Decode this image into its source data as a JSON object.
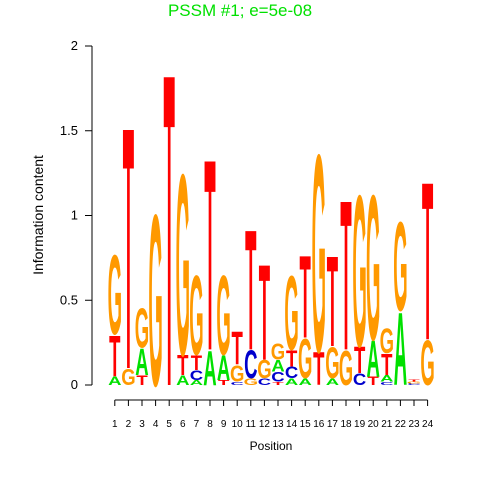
{
  "chart_data": {
    "type": "sequence-logo",
    "title": "PSSM #1; e=5e-08",
    "title_color": "#00e000",
    "xlabel": "Position",
    "ylabel": "Information content",
    "ylim": [
      0,
      2
    ],
    "y_ticks": [
      "0",
      "0.5",
      "1",
      "1.5",
      "2"
    ],
    "y_tick_values": [
      0,
      0.5,
      1,
      1.5,
      2
    ],
    "grid": false,
    "letter_colors": {
      "A": "#00e000",
      "C": "#0000cc",
      "G": "#ff9900",
      "T": "#ff0000"
    },
    "positions": [
      {
        "label": "1",
        "stack": [
          [
            "A",
            0.05
          ],
          [
            "T",
            0.25
          ],
          [
            "G",
            0.48
          ]
        ]
      },
      {
        "label": "2",
        "stack": [
          [
            "G",
            0.1
          ],
          [
            "T",
            1.47
          ]
        ]
      },
      {
        "label": "3",
        "stack": [
          [
            "T",
            0.06
          ],
          [
            "A",
            0.16
          ],
          [
            "G",
            0.24
          ]
        ]
      },
      {
        "label": "4",
        "stack": [
          [
            "G",
            1.04
          ]
        ]
      },
      {
        "label": "5",
        "stack": [
          [
            "T",
            1.9
          ]
        ]
      },
      {
        "label": "6",
        "stack": [
          [
            "A",
            0.06
          ],
          [
            "T",
            0.12
          ],
          [
            "G",
            1.1
          ]
        ]
      },
      {
        "label": "7",
        "stack": [
          [
            "A",
            0.03
          ],
          [
            "C",
            0.06
          ],
          [
            "T",
            0.09
          ],
          [
            "G",
            0.48
          ]
        ]
      },
      {
        "label": "8",
        "stack": [
          [
            "A",
            0.21
          ],
          [
            "T",
            1.16
          ]
        ]
      },
      {
        "label": "9",
        "stack": [
          [
            "T",
            0.03
          ],
          [
            "A",
            0.15
          ],
          [
            "G",
            0.48
          ]
        ]
      },
      {
        "label": "10",
        "stack": [
          [
            "C",
            0.02
          ],
          [
            "G",
            0.1
          ],
          [
            "T",
            0.2
          ]
        ]
      },
      {
        "label": "11",
        "stack": [
          [
            "G",
            0.04
          ],
          [
            "C",
            0.17
          ],
          [
            "T",
            0.73
          ]
        ]
      },
      {
        "label": "12",
        "stack": [
          [
            "C",
            0.04
          ],
          [
            "G",
            0.11
          ],
          [
            "T",
            0.58
          ]
        ]
      },
      {
        "label": "13",
        "stack": [
          [
            "T",
            0.02
          ],
          [
            "C",
            0.06
          ],
          [
            "A",
            0.07
          ],
          [
            "G",
            0.1
          ]
        ]
      },
      {
        "label": "14",
        "stack": [
          [
            "A",
            0.04
          ],
          [
            "C",
            0.07
          ],
          [
            "T",
            0.1
          ],
          [
            "G",
            0.45
          ]
        ]
      },
      {
        "label": "15",
        "stack": [
          [
            "A",
            0.04
          ],
          [
            "G",
            0.24
          ],
          [
            "T",
            0.5
          ]
        ]
      },
      {
        "label": "16",
        "stack": [
          [
            "T",
            0.2
          ],
          [
            "G",
            1.2
          ]
        ]
      },
      {
        "label": "17",
        "stack": [
          [
            "A",
            0.04
          ],
          [
            "G",
            0.19
          ],
          [
            "T",
            0.55
          ]
        ]
      },
      {
        "label": "18",
        "stack": [
          [
            "G",
            0.21
          ],
          [
            "T",
            0.91
          ]
        ]
      },
      {
        "label": "19",
        "stack": [
          [
            "C",
            0.07
          ],
          [
            "T",
            0.16
          ],
          [
            "G",
            0.92
          ]
        ]
      },
      {
        "label": "20",
        "stack": [
          [
            "T",
            0.05
          ],
          [
            "A",
            0.22
          ],
          [
            "G",
            0.88
          ]
        ]
      },
      {
        "label": "21",
        "stack": [
          [
            "C",
            0.02
          ],
          [
            "A",
            0.04
          ],
          [
            "T",
            0.13
          ],
          [
            "G",
            0.15
          ]
        ]
      },
      {
        "label": "22",
        "stack": [
          [
            "A",
            0.44
          ],
          [
            "G",
            0.54
          ]
        ]
      },
      {
        "label": "23",
        "stack": [
          [
            "C",
            0.01
          ],
          [
            "G",
            0.01
          ],
          [
            "T",
            0.01
          ]
        ]
      },
      {
        "label": "24",
        "stack": [
          [
            "G",
            0.27
          ],
          [
            "T",
            0.96
          ]
        ]
      }
    ]
  }
}
